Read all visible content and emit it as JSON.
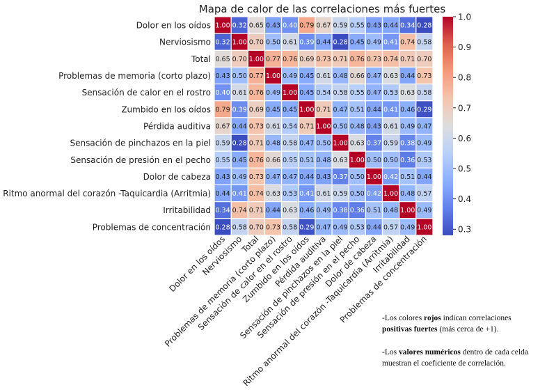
{
  "chart_data": {
    "type": "heatmap",
    "title": "Mapa de calor de las correlaciones más fuertes",
    "labels": [
      "Dolor en los oídos",
      "Nerviosismo",
      "Total",
      "Problemas de memoria (corto plazo)",
      "Sensación de calor en el rostro",
      "Zumbido en los oídos",
      "Pérdida auditiva",
      "Sensación de pinchazos en la piel",
      "Sensación de presión en el pecho",
      "Dolor de cabeza",
      "Ritmo anormal del corazón -Taquicardia (Arritmia)",
      "Irritabilidad",
      "Problemas de concentración"
    ],
    "matrix": [
      [
        1.0,
        0.32,
        0.65,
        0.43,
        0.4,
        0.79,
        0.67,
        0.59,
        0.55,
        0.43,
        0.44,
        0.34,
        0.28
      ],
      [
        0.32,
        1.0,
        0.7,
        0.5,
        0.61,
        0.39,
        0.44,
        0.28,
        0.45,
        0.49,
        0.41,
        0.74,
        0.58
      ],
      [
        0.65,
        0.7,
        1.0,
        0.77,
        0.76,
        0.69,
        0.73,
        0.71,
        0.76,
        0.73,
        0.74,
        0.71,
        0.7
      ],
      [
        0.43,
        0.5,
        0.77,
        1.0,
        0.49,
        0.45,
        0.61,
        0.48,
        0.66,
        0.47,
        0.63,
        0.44,
        0.73
      ],
      [
        0.4,
        0.61,
        0.76,
        0.49,
        1.0,
        0.45,
        0.54,
        0.58,
        0.55,
        0.47,
        0.53,
        0.63,
        0.58
      ],
      [
        0.79,
        0.39,
        0.69,
        0.45,
        0.45,
        1.0,
        0.71,
        0.47,
        0.51,
        0.44,
        0.41,
        0.46,
        0.29
      ],
      [
        0.67,
        0.44,
        0.73,
        0.61,
        0.54,
        0.71,
        1.0,
        0.5,
        0.48,
        0.43,
        0.61,
        0.49,
        0.47
      ],
      [
        0.59,
        0.28,
        0.71,
        0.48,
        0.58,
        0.47,
        0.5,
        1.0,
        0.63,
        0.37,
        0.59,
        0.38,
        0.49
      ],
      [
        0.55,
        0.45,
        0.76,
        0.66,
        0.55,
        0.51,
        0.48,
        0.63,
        1.0,
        0.5,
        0.5,
        0.36,
        0.53
      ],
      [
        0.43,
        0.49,
        0.73,
        0.47,
        0.47,
        0.44,
        0.43,
        0.37,
        0.5,
        1.0,
        0.42,
        0.51,
        0.44
      ],
      [
        0.44,
        0.41,
        0.74,
        0.63,
        0.53,
        0.41,
        0.61,
        0.59,
        0.5,
        0.42,
        1.0,
        0.48,
        0.57
      ],
      [
        0.34,
        0.74,
        0.71,
        0.44,
        0.63,
        0.46,
        0.49,
        0.38,
        0.36,
        0.51,
        0.48,
        1.0,
        0.49
      ],
      [
        0.28,
        0.58,
        0.7,
        0.73,
        0.58,
        0.29,
        0.47,
        0.49,
        0.53,
        0.44,
        0.57,
        0.49,
        1.0
      ]
    ],
    "colorbar": {
      "range": [
        0.28,
        1.0
      ],
      "ticks": [
        "1.0",
        "0.9",
        "0.8",
        "0.7",
        "0.6",
        "0.5",
        "0.4",
        "0.3"
      ],
      "tick_values": [
        1.0,
        0.9,
        0.8,
        0.7,
        0.6,
        0.5,
        0.4,
        0.3
      ],
      "colormap": "coolwarm"
    },
    "colors": {
      "low": "#3b4cc0",
      "mid": "#dddddd",
      "high": "#b40426",
      "grid": "#ffffff"
    }
  },
  "notes": {
    "note1_pre": "-Los colores ",
    "note1_bold1": "rojos",
    "note1_mid": " indican correlaciones ",
    "note1_bold2": "positivas fuertes",
    "note1_post": " (más cerca de +1).",
    "note2_pre": "-Los ",
    "note2_bold": "valores numéricos",
    "note2_post": " dentro de cada celda muestran el coeficiente de correlación."
  }
}
